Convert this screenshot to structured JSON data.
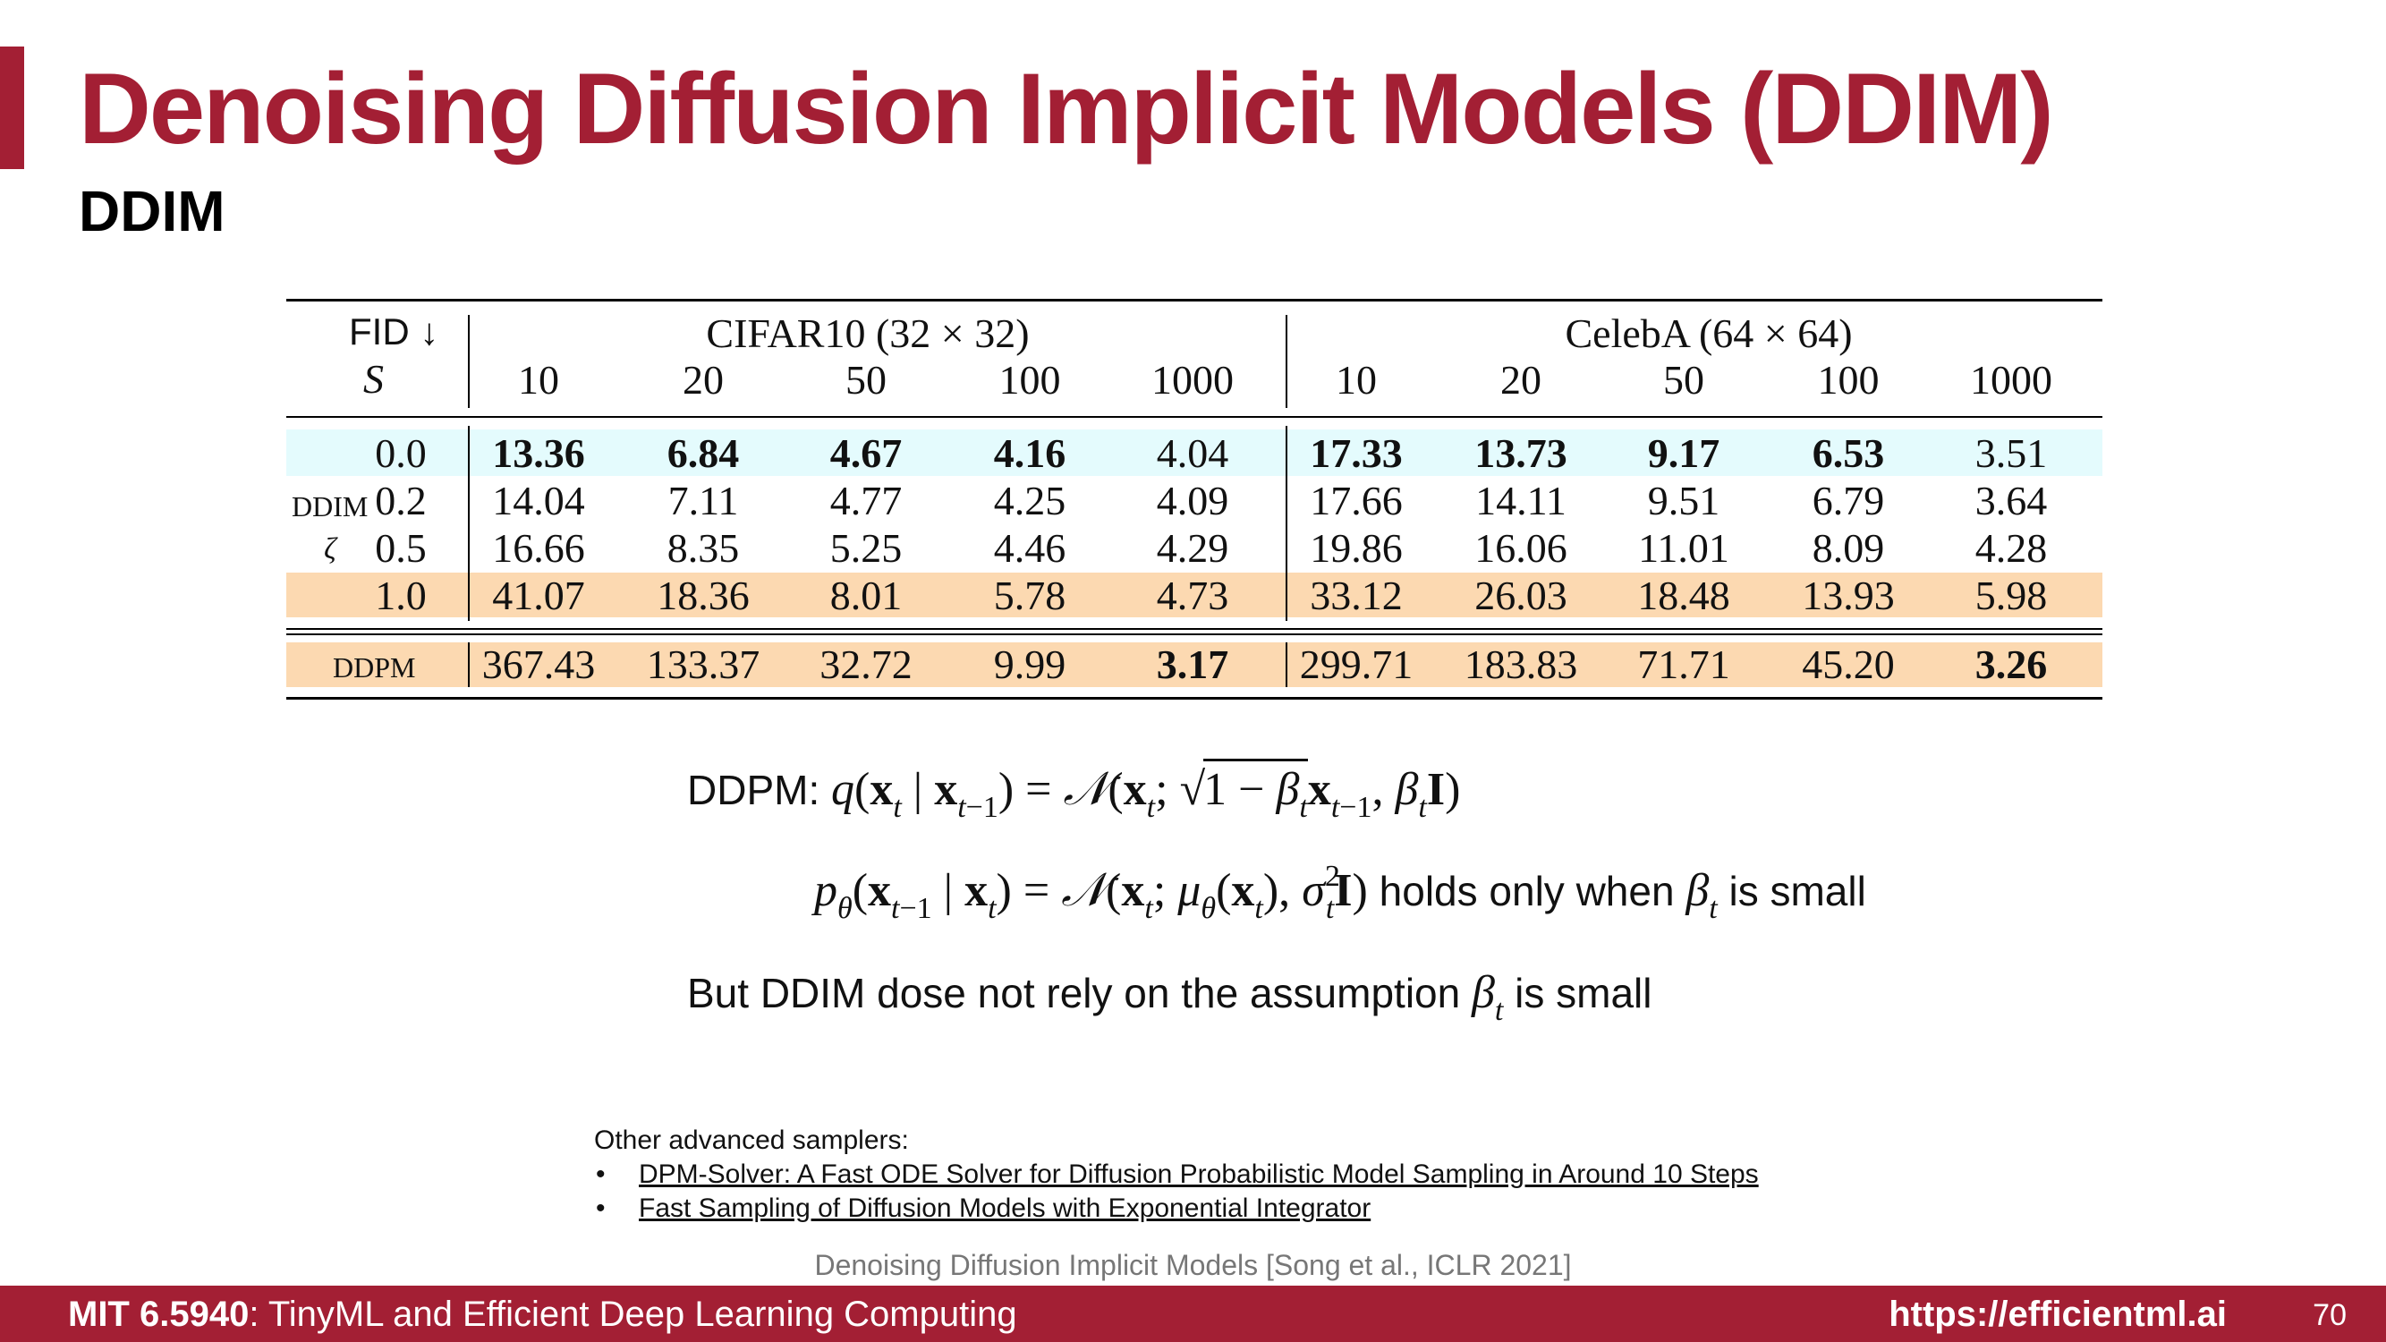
{
  "slide": {
    "title": "Denoising Diffusion Implicit Models (DDIM)",
    "subtitle": "DDIM",
    "accent_color": "#a31f34"
  },
  "table": {
    "corner_metric": "FID ↓",
    "corner_steps_symbol": "S",
    "groups": [
      "CIFAR10 (32 × 32)",
      "CelebA (64 × 64)"
    ],
    "steps": [
      "10",
      "20",
      "50",
      "100",
      "1000"
    ],
    "ddim_label": "DDIM",
    "eta_symbol": "ζ",
    "highlight_cyan": "#e4fbfd",
    "highlight_orange": "#fcd9b1",
    "rows": [
      {
        "eta": "0.0",
        "cifar": [
          "13.36",
          "6.84",
          "4.67",
          "4.16",
          "4.04"
        ],
        "celeba": [
          "17.33",
          "13.73",
          "9.17",
          "6.53",
          "3.51"
        ]
      },
      {
        "eta": "0.2",
        "cifar": [
          "14.04",
          "7.11",
          "4.77",
          "4.25",
          "4.09"
        ],
        "celeba": [
          "17.66",
          "14.11",
          "9.51",
          "6.79",
          "3.64"
        ]
      },
      {
        "eta": "0.5",
        "cifar": [
          "16.66",
          "8.35",
          "5.25",
          "4.46",
          "4.29"
        ],
        "celeba": [
          "19.86",
          "16.06",
          "11.01",
          "8.09",
          "4.28"
        ]
      },
      {
        "eta": "1.0",
        "cifar": [
          "41.07",
          "18.36",
          "8.01",
          "5.78",
          "4.73"
        ],
        "celeba": [
          "33.12",
          "26.03",
          "18.48",
          "13.93",
          "5.98"
        ]
      }
    ],
    "ddpm": {
      "label": "DDPM",
      "cifar": [
        "367.43",
        "133.37",
        "32.72",
        "9.99",
        "3.17"
      ],
      "celeba": [
        "299.71",
        "183.83",
        "71.71",
        "45.20",
        "3.26"
      ]
    }
  },
  "formulas": {
    "ddpm_prefix": "DDPM:",
    "reverse_suffix": "holds only when",
    "reverse_tail": "is small",
    "note_prefix": "But DDIM dose not rely on the assumption",
    "note_tail": "is small"
  },
  "references": {
    "heading": "Other advanced samplers:",
    "links": [
      "DPM-Solver: A Fast ODE Solver for Diffusion Probabilistic Model Sampling in Around 10 Steps",
      "Fast Sampling of Diffusion Models with Exponential Integrator"
    ]
  },
  "citation": "Denoising Diffusion Implicit Models [Song et al., ICLR 2021]",
  "footer": {
    "course_code": "MIT 6.5940",
    "course_name": ": TinyML and Efficient Deep Learning Computing",
    "url": "https://efficientml.ai",
    "page_number": "70"
  }
}
